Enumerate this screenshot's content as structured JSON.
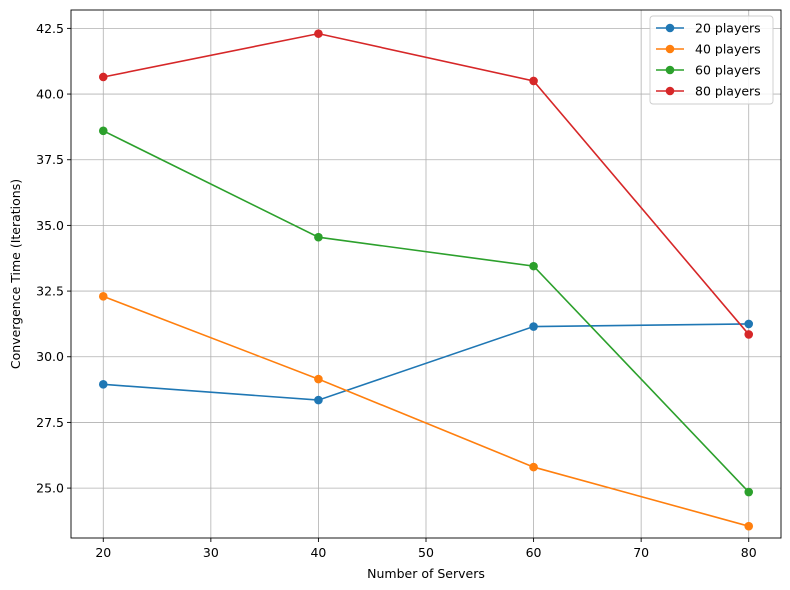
{
  "chart_data": {
    "type": "line",
    "title": "",
    "xlabel": "Number of Servers",
    "ylabel": "Convergence Time (Iterations)",
    "xlim": [
      17,
      83
    ],
    "ylim": [
      23.1,
      43.2
    ],
    "x_ticks": [
      20,
      30,
      40,
      50,
      60,
      70,
      80
    ],
    "x_tick_labels": [
      "20",
      "30",
      "40",
      "50",
      "60",
      "70",
      "80"
    ],
    "y_ticks": [
      25.0,
      27.5,
      30.0,
      32.5,
      35.0,
      37.5,
      40.0,
      42.5
    ],
    "y_tick_labels": [
      "25.0",
      "27.5",
      "30.0",
      "32.5",
      "35.0",
      "37.5",
      "40.0",
      "42.5"
    ],
    "grid": true,
    "legend_position": "top-right",
    "x": [
      20,
      40,
      60,
      80
    ],
    "series": [
      {
        "name": "20 players",
        "color": "#1f77b4",
        "values": [
          28.95,
          28.35,
          31.15,
          31.25
        ]
      },
      {
        "name": "40 players",
        "color": "#ff7f0e",
        "values": [
          32.3,
          29.15,
          25.8,
          23.55
        ]
      },
      {
        "name": "60 players",
        "color": "#2ca02c",
        "values": [
          38.6,
          34.55,
          33.45,
          24.85
        ]
      },
      {
        "name": "80 players",
        "color": "#d62728",
        "values": [
          40.65,
          42.3,
          40.5,
          30.85
        ]
      }
    ]
  }
}
